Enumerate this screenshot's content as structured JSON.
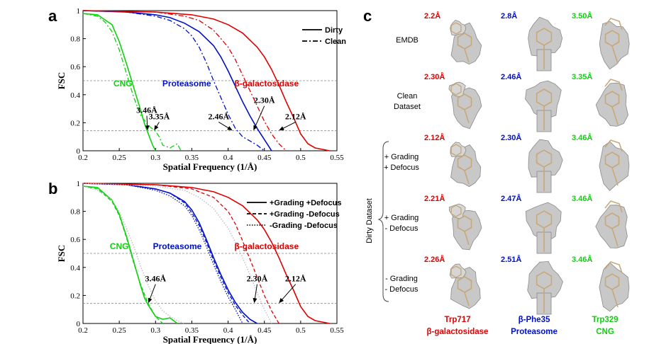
{
  "panel_letters": {
    "a": "a",
    "b": "b",
    "c": "c"
  },
  "colors": {
    "beta_gal": "#e00000",
    "proteasome": "#0010c8",
    "cng": "#10d010",
    "grey": "#bbbbbb",
    "density": "#c8c8c8",
    "model": "#c8a878"
  },
  "chart_data": [
    {
      "type": "line",
      "panel": "a",
      "xlabel": "Spatial Frequency (1/Å)",
      "ylabel": "FSC",
      "xlim": [
        0.2,
        0.55
      ],
      "ylim": [
        0,
        1
      ],
      "xticks": [
        "0.2",
        "0.25",
        "0.3",
        "0.35",
        "0.4",
        "0.45",
        "0.5",
        "0.55"
      ],
      "yticks": [
        "0",
        "0.2",
        "0.4",
        "0.6",
        "0.8",
        "1"
      ],
      "legend_position": "top-right",
      "legend": [
        {
          "label": "Dirty",
          "style": "solid"
        },
        {
          "label": "Clean",
          "style": "dashdot"
        }
      ],
      "reference_lines": [
        0.5,
        0.143
      ],
      "series_labels": [
        {
          "text": "CNG",
          "color": "#10d010",
          "x": 0.255,
          "y": 0.48
        },
        {
          "text": "Proteasome",
          "color": "#0010c8",
          "x": 0.343,
          "y": 0.48
        },
        {
          "text": "β-galactosidase",
          "color": "#e00000",
          "x": 0.453,
          "y": 0.48
        }
      ],
      "annotations": [
        {
          "text": "3.46Å",
          "text_x": 0.288,
          "text_y": 0.27,
          "arrow_x": 0.289,
          "arrow_y": 0.145
        },
        {
          "text": "3.35Å",
          "text_x": 0.305,
          "text_y": 0.225,
          "arrow_x": 0.298,
          "arrow_y": 0.145
        },
        {
          "text": "2.46Å",
          "text_x": 0.387,
          "text_y": 0.225,
          "arrow_x": 0.406,
          "arrow_y": 0.145
        },
        {
          "text": "2.30Å",
          "text_x": 0.45,
          "text_y": 0.34,
          "arrow_x": 0.435,
          "arrow_y": 0.145
        },
        {
          "text": "2.12Å",
          "text_x": 0.493,
          "text_y": 0.225,
          "arrow_x": 0.47,
          "arrow_y": 0.145
        }
      ],
      "series": [
        {
          "molecule": "CNG",
          "condition": "Dirty",
          "color": "#10d010",
          "style": "solid",
          "x": [
            0.2,
            0.22,
            0.24,
            0.25,
            0.26,
            0.27,
            0.28,
            0.285,
            0.29,
            0.293,
            0.296,
            0.3
          ],
          "y": [
            0.98,
            0.97,
            0.9,
            0.78,
            0.62,
            0.45,
            0.28,
            0.19,
            0.12,
            0.08,
            0.04,
            0.0
          ]
        },
        {
          "molecule": "CNG",
          "condition": "Clean",
          "color": "#10d010",
          "style": "dashdot",
          "x": [
            0.2,
            0.22,
            0.23,
            0.24,
            0.25,
            0.26,
            0.27,
            0.28,
            0.29,
            0.3,
            0.305,
            0.31,
            0.32,
            0.33,
            0.335
          ],
          "y": [
            0.98,
            0.96,
            0.92,
            0.85,
            0.72,
            0.55,
            0.38,
            0.25,
            0.18,
            0.14,
            0.1,
            0.04,
            0.02,
            0.05,
            0.0
          ]
        },
        {
          "molecule": "Proteasome",
          "condition": "Dirty",
          "color": "#0010c8",
          "style": "solid",
          "x": [
            0.2,
            0.26,
            0.3,
            0.32,
            0.34,
            0.36,
            0.38,
            0.39,
            0.4,
            0.41,
            0.42,
            0.43,
            0.44,
            0.45,
            0.455,
            0.46
          ],
          "y": [
            1.0,
            0.99,
            0.97,
            0.95,
            0.91,
            0.85,
            0.75,
            0.67,
            0.57,
            0.46,
            0.35,
            0.25,
            0.16,
            0.08,
            0.04,
            0.0
          ]
        },
        {
          "molecule": "Proteasome",
          "condition": "Clean",
          "color": "#0010c8",
          "style": "dashdot",
          "x": [
            0.2,
            0.26,
            0.3,
            0.32,
            0.34,
            0.35,
            0.36,
            0.37,
            0.38,
            0.39,
            0.4,
            0.41,
            0.42,
            0.43,
            0.44,
            0.45
          ],
          "y": [
            1.0,
            0.99,
            0.96,
            0.93,
            0.87,
            0.82,
            0.74,
            0.63,
            0.5,
            0.38,
            0.26,
            0.16,
            0.1,
            0.07,
            0.04,
            0.0
          ]
        },
        {
          "molecule": "β-galactosidase",
          "condition": "Dirty",
          "color": "#e00000",
          "style": "solid",
          "x": [
            0.2,
            0.3,
            0.35,
            0.38,
            0.4,
            0.42,
            0.44,
            0.45,
            0.46,
            0.47,
            0.48,
            0.49,
            0.5,
            0.51,
            0.52,
            0.53,
            0.54
          ],
          "y": [
            1.0,
            0.99,
            0.97,
            0.94,
            0.9,
            0.84,
            0.74,
            0.67,
            0.58,
            0.47,
            0.35,
            0.24,
            0.12,
            0.05,
            0.02,
            0.01,
            0.0
          ]
        },
        {
          "molecule": "β-galactosidase",
          "condition": "Clean",
          "color": "#e00000",
          "style": "dashdot",
          "x": [
            0.2,
            0.3,
            0.34,
            0.36,
            0.38,
            0.4,
            0.41,
            0.42,
            0.43,
            0.44,
            0.45,
            0.46,
            0.47,
            0.48
          ],
          "y": [
            1.0,
            0.99,
            0.96,
            0.93,
            0.86,
            0.74,
            0.65,
            0.54,
            0.43,
            0.32,
            0.21,
            0.12,
            0.05,
            0.0
          ]
        }
      ]
    },
    {
      "type": "line",
      "panel": "b",
      "xlabel": "Spatial Frequency (1/Å)",
      "ylabel": "FSC",
      "xlim": [
        0.2,
        0.55
      ],
      "ylim": [
        0,
        1
      ],
      "xticks": [
        "0.2",
        "0.25",
        "0.3",
        "0.35",
        "0.4",
        "0.45",
        "0.5",
        "0.55"
      ],
      "yticks": [
        "0",
        "0.2",
        "0.4",
        "0.6",
        "0.8",
        "1"
      ],
      "legend_position": "top-right",
      "legend": [
        {
          "label": "+Grading +Defocus",
          "style": "solid"
        },
        {
          "label": "+Grading  -Defocus",
          "style": "dashed"
        },
        {
          "label": "-Grading  -Defocus",
          "style": "dotted"
        }
      ],
      "reference_lines": [
        0.5,
        0.143
      ],
      "series_labels": [
        {
          "text": "CNG",
          "color": "#10d010",
          "x": 0.25,
          "y": 0.55
        },
        {
          "text": "Proteasome",
          "color": "#0010c8",
          "x": 0.33,
          "y": 0.55
        },
        {
          "text": "β-galactosidase",
          "color": "#e00000",
          "x": 0.453,
          "y": 0.55
        }
      ],
      "annotations": [
        {
          "text": "3.46Å",
          "text_x": 0.3,
          "text_y": 0.3,
          "arrow_x": 0.29,
          "arrow_y": 0.145
        },
        {
          "text": "2.30Å",
          "text_x": 0.44,
          "text_y": 0.3,
          "arrow_x": 0.436,
          "arrow_y": 0.145
        },
        {
          "text": "2.12Å",
          "text_x": 0.493,
          "text_y": 0.3,
          "arrow_x": 0.47,
          "arrow_y": 0.145
        }
      ],
      "series": [
        {
          "molecule": "CNG",
          "condition": "+Grading +Defocus",
          "color": "#10d010",
          "style": "solid",
          "x": [
            0.2,
            0.22,
            0.24,
            0.25,
            0.26,
            0.27,
            0.28,
            0.285,
            0.29,
            0.3,
            0.31,
            0.32,
            0.33
          ],
          "y": [
            0.98,
            0.97,
            0.88,
            0.78,
            0.62,
            0.44,
            0.26,
            0.18,
            0.13,
            0.05,
            0.03,
            0.04,
            0.0
          ]
        },
        {
          "molecule": "CNG",
          "condition": "+Grading  -Defocus",
          "color": "#10d010",
          "style": "dashed",
          "x": [
            0.2,
            0.22,
            0.24,
            0.25,
            0.26,
            0.27,
            0.28,
            0.29,
            0.3,
            0.31
          ],
          "y": [
            0.98,
            0.96,
            0.87,
            0.77,
            0.61,
            0.43,
            0.27,
            0.14,
            0.05,
            0.0
          ]
        },
        {
          "molecule": "CNG",
          "condition": "-Grading  -Defocus",
          "color": "#bbbbbb",
          "style": "dotted",
          "x": [
            0.2,
            0.22,
            0.24,
            0.25,
            0.26,
            0.27,
            0.28,
            0.29,
            0.3,
            0.31,
            0.32,
            0.33,
            0.34
          ],
          "y": [
            0.98,
            0.95,
            0.88,
            0.8,
            0.68,
            0.55,
            0.4,
            0.27,
            0.16,
            0.09,
            0.05,
            0.02,
            0.0
          ]
        },
        {
          "molecule": "Proteasome",
          "condition": "+Grading +Defocus",
          "color": "#0010c8",
          "style": "solid",
          "x": [
            0.2,
            0.26,
            0.3,
            0.32,
            0.34,
            0.35,
            0.36,
            0.37,
            0.38,
            0.39,
            0.4,
            0.41,
            0.42,
            0.43,
            0.44
          ],
          "y": [
            1.0,
            0.99,
            0.96,
            0.93,
            0.87,
            0.81,
            0.72,
            0.6,
            0.47,
            0.35,
            0.24,
            0.15,
            0.08,
            0.03,
            0.0
          ]
        },
        {
          "molecule": "Proteasome",
          "condition": "+Grading  -Defocus",
          "color": "#0010c8",
          "style": "dashed",
          "x": [
            0.2,
            0.26,
            0.3,
            0.32,
            0.34,
            0.35,
            0.36,
            0.37,
            0.38,
            0.39,
            0.4,
            0.41,
            0.42,
            0.43
          ],
          "y": [
            1.0,
            0.99,
            0.96,
            0.93,
            0.86,
            0.79,
            0.7,
            0.58,
            0.45,
            0.33,
            0.22,
            0.13,
            0.06,
            0.0
          ]
        },
        {
          "molecule": "Proteasome",
          "condition": "-Grading  -Defocus",
          "color": "#0010c8",
          "style": "dotted",
          "x": [
            0.2,
            0.26,
            0.3,
            0.32,
            0.34,
            0.35,
            0.36,
            0.37,
            0.38,
            0.39,
            0.4,
            0.41,
            0.42
          ],
          "y": [
            1.0,
            0.99,
            0.95,
            0.91,
            0.84,
            0.77,
            0.67,
            0.55,
            0.42,
            0.3,
            0.19,
            0.1,
            0.0
          ]
        },
        {
          "molecule": "β-galactosidase",
          "condition": "+Grading +Defocus",
          "color": "#e00000",
          "style": "solid",
          "x": [
            0.2,
            0.3,
            0.35,
            0.38,
            0.4,
            0.42,
            0.44,
            0.45,
            0.46,
            0.47,
            0.48,
            0.49,
            0.5,
            0.51,
            0.52,
            0.53,
            0.54
          ],
          "y": [
            1.0,
            0.99,
            0.97,
            0.94,
            0.9,
            0.84,
            0.74,
            0.67,
            0.58,
            0.47,
            0.35,
            0.24,
            0.12,
            0.05,
            0.02,
            0.01,
            0.0
          ]
        },
        {
          "molecule": "β-galactosidase",
          "condition": "+Grading  -Defocus",
          "color": "#e00000",
          "style": "dashed",
          "x": [
            0.2,
            0.3,
            0.35,
            0.38,
            0.4,
            0.41,
            0.42,
            0.43,
            0.44,
            0.45,
            0.46,
            0.47
          ],
          "y": [
            1.0,
            0.99,
            0.96,
            0.9,
            0.8,
            0.71,
            0.59,
            0.46,
            0.33,
            0.2,
            0.09,
            0.0
          ]
        },
        {
          "molecule": "β-galactosidase",
          "condition": "-Grading  -Defocus",
          "color": "#bbbbbb",
          "style": "dotted",
          "x": [
            0.2,
            0.3,
            0.34,
            0.36,
            0.38,
            0.4,
            0.41,
            0.42,
            0.43,
            0.44,
            0.45,
            0.46
          ],
          "y": [
            1.0,
            0.98,
            0.95,
            0.9,
            0.82,
            0.68,
            0.58,
            0.47,
            0.35,
            0.22,
            0.1,
            0.0
          ]
        }
      ]
    }
  ],
  "panel_c": {
    "columns": [
      {
        "name": "Trp717",
        "molecule": "β-galactosidase",
        "color": "#e00000"
      },
      {
        "name": "β-Phe35",
        "molecule": "Proteasome",
        "color": "#0010c8"
      },
      {
        "name": "Trp329",
        "molecule": "CNG",
        "color": "#10d010"
      }
    ],
    "rows": [
      {
        "label_lines": [
          "EMDB"
        ],
        "resolutions": [
          "2.2Å",
          "2.8Å",
          "3.50Å"
        ]
      },
      {
        "label_lines": [
          "Clean",
          "Dataset"
        ],
        "resolutions": [
          "2.30Å",
          "2.46Å",
          "3.35Å"
        ]
      },
      {
        "label_lines": [
          "+ Grading",
          "+ Defocus"
        ],
        "resolutions": [
          "2.12Å",
          "2.30Å",
          "3.46Å"
        ]
      },
      {
        "label_lines": [
          "+ Grading",
          "-  Defocus"
        ],
        "resolutions": [
          "2.21Å",
          "2.47Å",
          "3.46Å"
        ]
      },
      {
        "label_lines": [
          "- Grading",
          "- Defocus"
        ],
        "resolutions": [
          "2.26Å",
          "2.51Å",
          "3.46Å"
        ]
      }
    ],
    "group_label": "Dirty Dataset"
  }
}
